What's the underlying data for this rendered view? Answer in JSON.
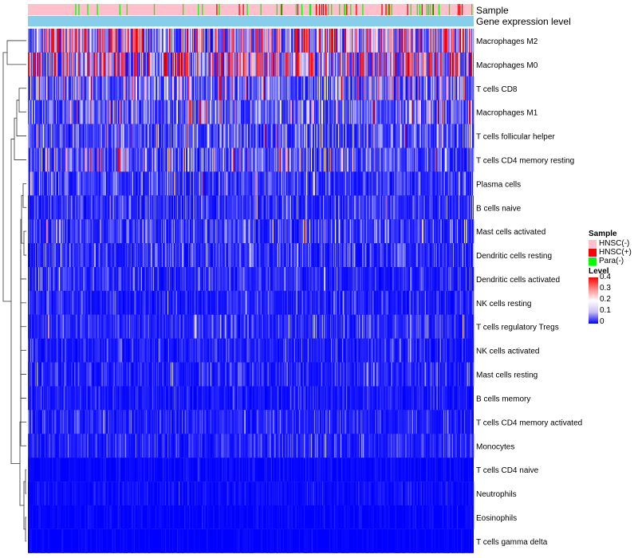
{
  "chart_data": {
    "type": "heatmap",
    "annotation_tracks": [
      "Sample",
      "Gene expression level"
    ],
    "rows": [
      {
        "label": "Macrophages M2",
        "mean": 0.21
      },
      {
        "label": "Macrophages M0",
        "mean": 0.22
      },
      {
        "label": "T cells CD8",
        "mean": 0.1
      },
      {
        "label": "Macrophages M1",
        "mean": 0.08
      },
      {
        "label": "T cells follicular helper",
        "mean": 0.07
      },
      {
        "label": "T cells CD4 memory resting",
        "mean": 0.08
      },
      {
        "label": "Plasma cells",
        "mean": 0.05
      },
      {
        "label": "B cells naive",
        "mean": 0.04
      },
      {
        "label": "Mast cells activated",
        "mean": 0.05
      },
      {
        "label": "Dendritic cells resting",
        "mean": 0.04
      },
      {
        "label": "Dendritic cells activated",
        "mean": 0.035
      },
      {
        "label": "NK cells resting",
        "mean": 0.03
      },
      {
        "label": "T cells regulatory  Tregs",
        "mean": 0.035
      },
      {
        "label": "NK cells activated",
        "mean": 0.025
      },
      {
        "label": "Mast cells resting",
        "mean": 0.03
      },
      {
        "label": "B cells memory",
        "mean": 0.02
      },
      {
        "label": "T cells CD4 memory activated",
        "mean": 0.03
      },
      {
        "label": "Monocytes",
        "mean": 0.03
      },
      {
        "label": "T cells CD4 naive",
        "mean": 0.008
      },
      {
        "label": "Neutrophils",
        "mean": 0.012
      },
      {
        "label": "Eosinophils",
        "mean": 0.006
      },
      {
        "label": "T cells gamma delta",
        "mean": 0.004
      }
    ],
    "sample_groups": [
      {
        "name": "HNSC(-)",
        "color": "#ffc0cb"
      },
      {
        "name": "HNSC(+)",
        "color": "#ff0000"
      },
      {
        "name": "Para(-)",
        "color": "#00ff00"
      }
    ],
    "n_samples": 556,
    "expression_color": "#87ceeb",
    "value_range": [
      0,
      0.4
    ],
    "color_scale": [
      "#0000ff",
      "#ffffff",
      "#ff0000"
    ]
  },
  "legend": {
    "sample_title": "Sample",
    "level_title": "Level",
    "ticks": [
      "0.4",
      "0.3",
      "0.2",
      "0.1",
      "0"
    ]
  }
}
